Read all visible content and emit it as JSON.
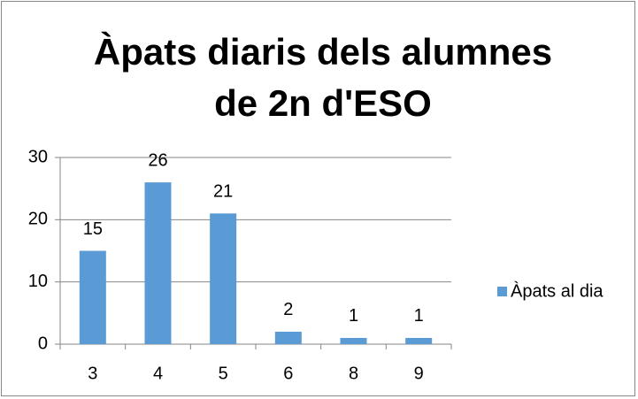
{
  "chart_data": {
    "type": "bar",
    "title": "Àpats diaris dels alumnes de 2n d'ESO",
    "categories": [
      "3",
      "4",
      "5",
      "6",
      "8",
      "9"
    ],
    "series": [
      {
        "name": "Àpats al dia",
        "color": "#5b9bd5",
        "values": [
          15,
          26,
          21,
          2,
          1,
          1
        ]
      }
    ],
    "ylim": [
      0,
      30
    ],
    "yticks": [
      0,
      10,
      20,
      30
    ],
    "grid": true,
    "legend": "right"
  }
}
